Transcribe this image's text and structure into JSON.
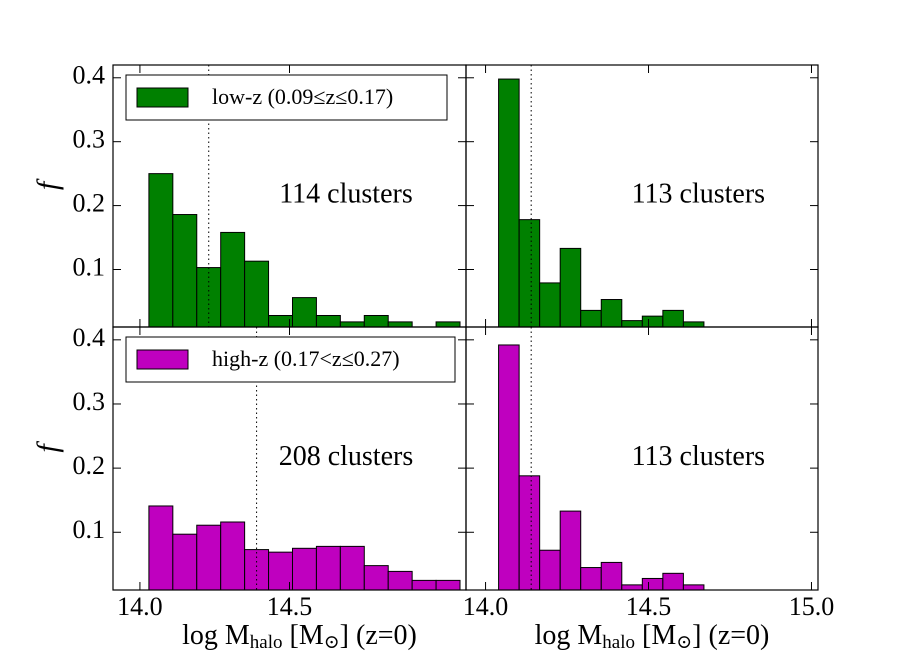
{
  "chart_data": [
    {
      "type": "histogram",
      "legend": "upper left",
      "annotation": "114 clusters",
      "ylabel": "f",
      "vline": 14.23,
      "bins": [
        14.03,
        14.11,
        14.19,
        14.27,
        14.35,
        14.43,
        14.51,
        14.59,
        14.67,
        14.75,
        14.83,
        14.91,
        14.99,
        15.07
      ],
      "series": [
        {
          "name": "low-z (0.09≤z≤0.17)",
          "color": "#008000",
          "values": [
            0.25,
            0.186,
            0.103,
            0.158,
            0.113,
            0.028,
            0.056,
            0.028,
            0.018,
            0.028,
            0.018,
            0,
            0.018
          ]
        }
      ],
      "xlim": [
        13.91,
        15.09
      ],
      "ylim": [
        0.01,
        0.42
      ],
      "yticks": [
        0.1,
        0.2,
        0.3,
        0.4
      ]
    },
    {
      "type": "histogram",
      "annotation": "113 clusters",
      "vline": 14.14,
      "bins": [
        14.04,
        14.103,
        14.166,
        14.229,
        14.292,
        14.355,
        14.418,
        14.481,
        14.544,
        14.607,
        14.67
      ],
      "series": [
        {
          "color": "#008000",
          "values": [
            0.398,
            0.178,
            0.079,
            0.133,
            0.036,
            0.053,
            0.02,
            0.027,
            0.036,
            0.018
          ]
        }
      ],
      "xlim": [
        13.94,
        15.02
      ],
      "ylim": [
        0.01,
        0.42
      ]
    },
    {
      "type": "histogram",
      "legend": "upper left",
      "annotation": "208 clusters",
      "ylabel": "f",
      "vline": 14.39,
      "xlabel": [
        "log M",
        "halo",
        " [M",
        "⊙",
        "] (z=0)"
      ],
      "bins": [
        14.03,
        14.11,
        14.19,
        14.27,
        14.35,
        14.43,
        14.51,
        14.59,
        14.67,
        14.75,
        14.83,
        14.91,
        14.99,
        15.07
      ],
      "series": [
        {
          "name": "high-z (0.17<z≤0.27)",
          "color": "#bf00bf",
          "values": [
            0.141,
            0.097,
            0.111,
            0.116,
            0.073,
            0.069,
            0.075,
            0.078,
            0.078,
            0.048,
            0.039,
            0.025,
            0.025
          ]
        }
      ],
      "xlim": [
        13.91,
        15.09
      ],
      "ylim": [
        0.01,
        0.42
      ],
      "yticks": [
        0.1,
        0.2,
        0.3,
        0.4
      ],
      "xticks": [
        {
          "value": 14,
          "label": "14.0"
        },
        14.5
      ]
    },
    {
      "type": "histogram",
      "annotation": "113 clusters",
      "vline": 14.14,
      "xlabel": [
        "log M",
        "halo",
        " [M",
        "⊙",
        "] (z=0)"
      ],
      "bins": [
        14.04,
        14.103,
        14.166,
        14.229,
        14.292,
        14.355,
        14.418,
        14.481,
        14.544,
        14.607,
        14.67
      ],
      "series": [
        {
          "color": "#bf00bf",
          "values": [
            0.392,
            0.188,
            0.072,
            0.133,
            0.045,
            0.053,
            0.018,
            0.028,
            0.036,
            0.018
          ]
        }
      ],
      "xlim": [
        13.94,
        15.02
      ],
      "ylim": [
        0.01,
        0.42
      ],
      "xticks": [
        {
          "value": 14,
          "label": "14.0"
        },
        14.5,
        {
          "value": 15,
          "label": "15.0"
        }
      ]
    }
  ]
}
